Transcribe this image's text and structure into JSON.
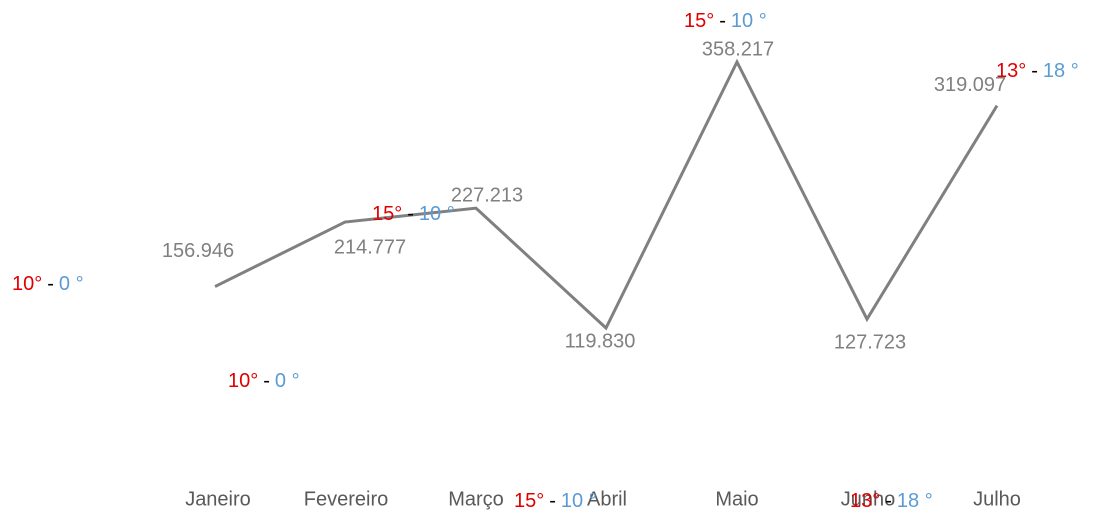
{
  "chart_data": {
    "type": "line",
    "categories": [
      "Janeiro",
      "Fevereiro",
      "Março",
      "Abril",
      "Maio",
      "Junho",
      "Julho"
    ],
    "series": [
      {
        "color": "#808080",
        "values": [
          156946,
          214777,
          227213,
          119830,
          358217,
          127723,
          319097
        ],
        "value_labels": [
          "156.946",
          "214.777",
          "227.213",
          "119.830",
          "358.217",
          "127.723",
          "319.097"
        ]
      }
    ],
    "label_color": "#808080",
    "low_color": "#e00000",
    "sep_color": "#000000",
    "high_color": "#5b9bd5",
    "annotations": [
      {
        "low": "10°",
        "sep": "-",
        "high": "0 °"
      },
      {
        "low": "10°",
        "sep": "-",
        "high": "0 °"
      },
      {
        "low": "15°",
        "sep": "-",
        "high": "10 °"
      },
      {
        "low": "15°",
        "sep": "-",
        "high": "10 °"
      },
      {
        "low": "13°",
        "sep": "-",
        "high": "18 °"
      },
      {
        "low": "15°",
        "sep": "-",
        "high": "10 °"
      },
      {
        "low": "13°",
        "sep": "-",
        "high": "18 °"
      }
    ]
  }
}
